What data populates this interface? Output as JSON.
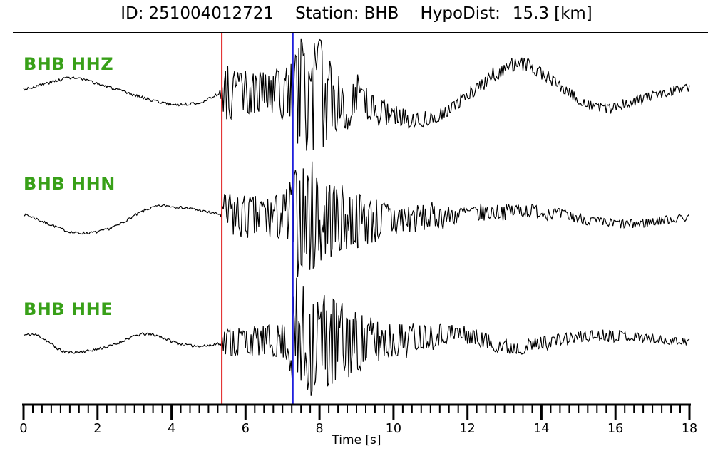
{
  "header": {
    "id_label": "ID:",
    "id_value": "251004012721",
    "station_label": "Station:",
    "station_value": "BHB",
    "hypodist_label": "HypoDist:",
    "hypodist_value": "15.3",
    "hypodist_unit": "[km]"
  },
  "chart_data": {
    "type": "line",
    "title": "ID: 251004012721  Station: BHB  HypoDist: 15.3 [km]",
    "xlabel": "Time [s]",
    "xlim": [
      0,
      18
    ],
    "x_major_ticks": [
      0,
      2,
      4,
      6,
      8,
      10,
      12,
      14,
      16,
      18
    ],
    "x_minor_step": 0.25,
    "background_color": "#ffffff",
    "trace_color": "#000000",
    "channel_label_color": "#38a018",
    "picks": [
      {
        "name": "red-pick",
        "time_s": 5.36,
        "color": "#e22020"
      },
      {
        "name": "blue-pick",
        "time_s": 7.28,
        "color": "#2020dd"
      }
    ],
    "traces": [
      {
        "id": "BHB HHZ",
        "seed": 3,
        "drift": [
          [
            0,
            0.08
          ],
          [
            0.7,
            0.18
          ],
          [
            1.3,
            0.26
          ],
          [
            2.2,
            0.13
          ],
          [
            3.0,
            -0.02
          ],
          [
            4.0,
            -0.16
          ],
          [
            4.8,
            -0.13
          ],
          [
            5.36,
            0.02
          ],
          [
            6.0,
            0.0
          ],
          [
            7.0,
            0.0
          ],
          [
            8.0,
            -0.02
          ],
          [
            9.0,
            -0.15
          ],
          [
            9.8,
            -0.3
          ],
          [
            10.7,
            -0.4
          ],
          [
            11.5,
            -0.25
          ],
          [
            12.3,
            0.12
          ],
          [
            13.3,
            0.48
          ],
          [
            14.0,
            0.33
          ],
          [
            14.8,
            0.0
          ],
          [
            15.5,
            -0.22
          ],
          [
            16.3,
            -0.15
          ],
          [
            17.2,
            0.0
          ],
          [
            18,
            0.1
          ]
        ],
        "envelope": [
          [
            0,
            0.02
          ],
          [
            5.3,
            0.02
          ],
          [
            5.42,
            0.45
          ],
          [
            5.9,
            0.38
          ],
          [
            6.6,
            0.4
          ],
          [
            7.15,
            0.45
          ],
          [
            7.5,
            1.0
          ],
          [
            8.0,
            0.92
          ],
          [
            8.5,
            0.55
          ],
          [
            9.2,
            0.32
          ],
          [
            9.9,
            0.2
          ],
          [
            10.6,
            0.13
          ],
          [
            11.5,
            0.1
          ],
          [
            12.5,
            0.11
          ],
          [
            13.5,
            0.12
          ],
          [
            14.5,
            0.09
          ],
          [
            15.5,
            0.08
          ],
          [
            16.5,
            0.08
          ],
          [
            18,
            0.07
          ]
        ]
      },
      {
        "id": "BHB HHN",
        "seed": 7,
        "drift": [
          [
            0,
            0.05
          ],
          [
            0.6,
            -0.1
          ],
          [
            1.4,
            -0.27
          ],
          [
            2.3,
            -0.2
          ],
          [
            3.5,
            0.17
          ],
          [
            4.3,
            0.17
          ],
          [
            5.1,
            0.08
          ],
          [
            5.36,
            0.05
          ],
          [
            6.0,
            0.0
          ],
          [
            8.0,
            0.0
          ],
          [
            9.0,
            -0.05
          ],
          [
            10.0,
            -0.05
          ],
          [
            11.0,
            0.0
          ],
          [
            12.0,
            0.05
          ],
          [
            13.5,
            0.12
          ],
          [
            14.5,
            0.05
          ],
          [
            15.5,
            -0.08
          ],
          [
            16.5,
            -0.12
          ],
          [
            17.3,
            -0.05
          ],
          [
            18,
            0.0
          ]
        ],
        "envelope": [
          [
            0,
            0.02
          ],
          [
            5.32,
            0.02
          ],
          [
            5.45,
            0.42
          ],
          [
            6.2,
            0.38
          ],
          [
            7.0,
            0.42
          ],
          [
            7.4,
            0.92
          ],
          [
            7.8,
            1.0
          ],
          [
            8.4,
            0.65
          ],
          [
            9.1,
            0.48
          ],
          [
            9.9,
            0.33
          ],
          [
            10.7,
            0.24
          ],
          [
            11.6,
            0.16
          ],
          [
            12.6,
            0.13
          ],
          [
            13.6,
            0.12
          ],
          [
            14.6,
            0.1
          ],
          [
            15.6,
            0.08
          ],
          [
            16.6,
            0.08
          ],
          [
            18,
            0.07
          ]
        ]
      },
      {
        "id": "BHB HHE",
        "seed": 11,
        "drift": [
          [
            0,
            0.1
          ],
          [
            0.4,
            0.09
          ],
          [
            1.1,
            -0.17
          ],
          [
            2.2,
            -0.1
          ],
          [
            3.3,
            0.12
          ],
          [
            4.3,
            -0.05
          ],
          [
            5.0,
            -0.07
          ],
          [
            5.36,
            -0.02
          ],
          [
            6.0,
            0.0
          ],
          [
            8.0,
            0.0
          ],
          [
            9.0,
            -0.02
          ],
          [
            10.0,
            0.02
          ],
          [
            11.0,
            0.1
          ],
          [
            11.8,
            0.12
          ],
          [
            13.2,
            -0.1
          ],
          [
            14.2,
            0.0
          ],
          [
            15.5,
            0.1
          ],
          [
            16.5,
            0.08
          ],
          [
            17.3,
            0.02
          ],
          [
            18,
            0.0
          ]
        ],
        "envelope": [
          [
            0,
            0.02
          ],
          [
            5.32,
            0.02
          ],
          [
            5.45,
            0.26
          ],
          [
            6.3,
            0.24
          ],
          [
            7.1,
            0.3
          ],
          [
            7.35,
            1.0
          ],
          [
            7.8,
            0.92
          ],
          [
            8.3,
            0.8
          ],
          [
            9.0,
            0.52
          ],
          [
            9.7,
            0.33
          ],
          [
            10.5,
            0.24
          ],
          [
            11.4,
            0.17
          ],
          [
            12.3,
            0.14
          ],
          [
            13.3,
            0.12
          ],
          [
            14.5,
            0.1
          ],
          [
            16.0,
            0.09
          ],
          [
            17.0,
            0.07
          ],
          [
            18,
            0.06
          ]
        ]
      }
    ]
  }
}
